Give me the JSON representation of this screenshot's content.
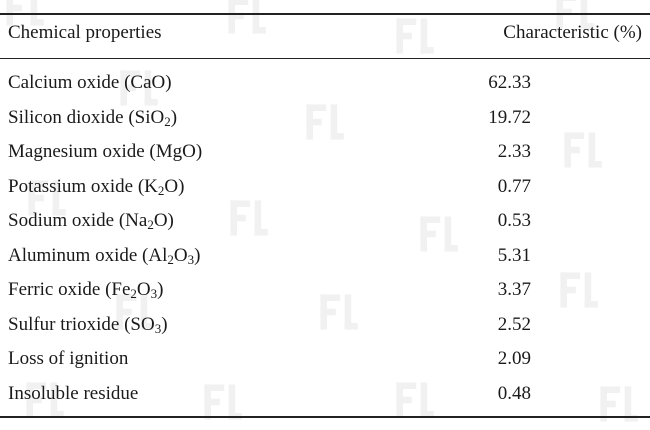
{
  "table": {
    "header": {
      "left": "Chemical properties",
      "right": "Characteristic (%)"
    },
    "rows": [
      {
        "name": [
          {
            "t": "Calcium oxide (CaO)"
          }
        ],
        "value": "62.33"
      },
      {
        "name": [
          {
            "t": "Silicon dioxide (SiO"
          },
          {
            "sub": "2"
          },
          {
            "t": ")"
          }
        ],
        "value": "19.72"
      },
      {
        "name": [
          {
            "t": "Magnesium oxide (MgO)"
          }
        ],
        "value": "2.33"
      },
      {
        "name": [
          {
            "t": "Potassium oxide (K"
          },
          {
            "sub": "2"
          },
          {
            "t": "O)"
          }
        ],
        "value": "0.77"
      },
      {
        "name": [
          {
            "t": "Sodium oxide (Na"
          },
          {
            "sub": "2"
          },
          {
            "t": "O)"
          }
        ],
        "value": "0.53"
      },
      {
        "name": [
          {
            "t": "Aluminum oxide (Al"
          },
          {
            "sub": "2"
          },
          {
            "t": "O"
          },
          {
            "sub": "3"
          },
          {
            "t": ")"
          }
        ],
        "value": "5.31"
      },
      {
        "name": [
          {
            "t": "Ferric oxide (Fe"
          },
          {
            "sub": "2"
          },
          {
            "t": "O"
          },
          {
            "sub": "3"
          },
          {
            "t": ")"
          }
        ],
        "value": "3.37"
      },
      {
        "name": [
          {
            "t": "Sulfur trioxide (SO"
          },
          {
            "sub": "3"
          },
          {
            "t": ")"
          }
        ],
        "value": "2.52"
      },
      {
        "name": [
          {
            "t": "Loss of ignition"
          }
        ],
        "value": "2.09"
      },
      {
        "name": [
          {
            "t": "Insoluble residue"
          }
        ],
        "value": "0.48"
      }
    ]
  },
  "colors": {
    "text": "#1a1a1a",
    "rules": "#222222",
    "watermark": "#9a9a9a"
  },
  "watermark_icon": "publisher-logo-icon"
}
